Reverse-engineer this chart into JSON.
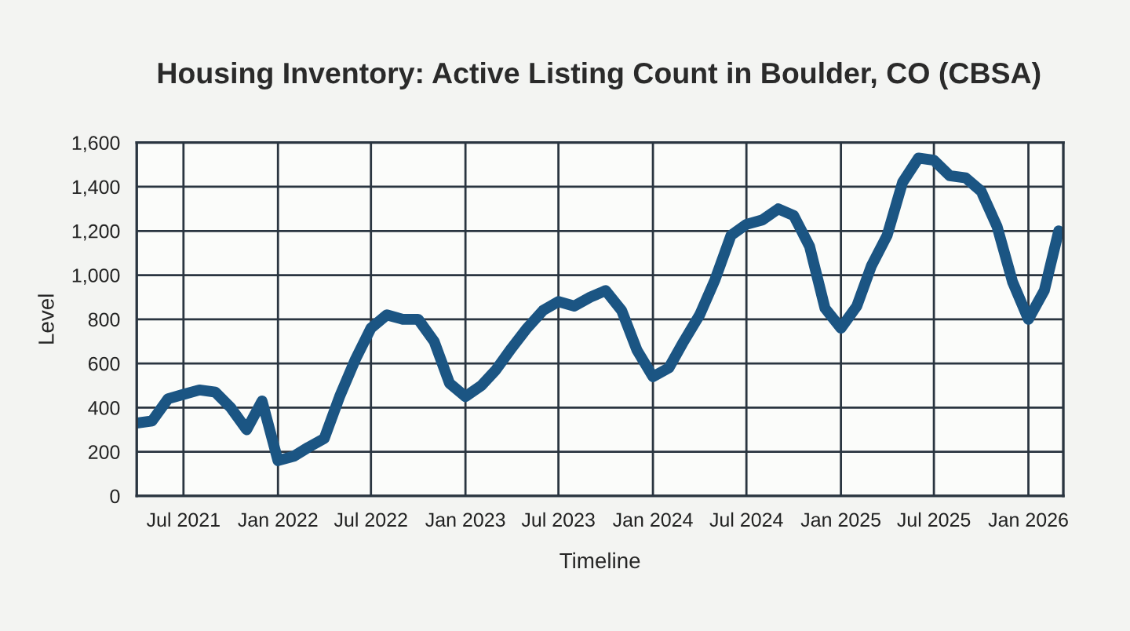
{
  "chart_data": {
    "type": "line",
    "title": "Housing Inventory: Active Listing Count in Boulder, CO (CBSA)",
    "xlabel": "Timeline",
    "ylabel": "Level",
    "x": [
      "2021-04",
      "2021-05",
      "2021-06",
      "2021-07",
      "2021-08",
      "2021-09",
      "2021-10",
      "2021-11",
      "2021-12",
      "2022-01",
      "2022-02",
      "2022-03",
      "2022-04",
      "2022-05",
      "2022-06",
      "2022-07",
      "2022-08",
      "2022-09",
      "2022-10",
      "2022-11",
      "2022-12",
      "2023-01",
      "2023-02",
      "2023-03",
      "2023-04",
      "2023-05",
      "2023-06",
      "2023-07",
      "2023-08",
      "2023-09",
      "2023-10",
      "2023-11",
      "2023-12",
      "2024-01",
      "2024-02",
      "2024-03",
      "2024-04",
      "2024-05",
      "2024-06",
      "2024-07",
      "2024-08",
      "2024-09",
      "2024-10",
      "2024-11",
      "2024-12",
      "2025-01",
      "2025-02",
      "2025-03",
      "2025-04",
      "2025-05",
      "2025-06",
      "2025-07",
      "2025-08",
      "2025-09",
      "2025-10",
      "2025-11",
      "2025-12",
      "2026-01",
      "2026-02",
      "2026-03"
    ],
    "series": [
      {
        "color": "#1b5583",
        "values": [
          330,
          340,
          440,
          460,
          480,
          470,
          400,
          300,
          430,
          160,
          180,
          220,
          260,
          450,
          620,
          760,
          820,
          800,
          800,
          700,
          510,
          450,
          500,
          570,
          670,
          760,
          840,
          880,
          860,
          900,
          930,
          840,
          660,
          540,
          580,
          700,
          820,
          980,
          1180,
          1230,
          1250,
          1300,
          1270,
          1130,
          850,
          760,
          860,
          1040,
          1180,
          1420,
          1530,
          1520,
          1450,
          1440,
          1380,
          1220,
          970,
          800,
          930,
          1200
        ]
      }
    ],
    "xlim": [
      "2021-04-01",
      "2026-03-10"
    ],
    "xticks": [
      {
        "value": "2021-07-01",
        "label": "Jul 2021"
      },
      {
        "value": "2022-01-01",
        "label": "Jan 2022"
      },
      {
        "value": "2022-07-01",
        "label": "Jul 2022"
      },
      {
        "value": "2023-01-01",
        "label": "Jan 2023"
      },
      {
        "value": "2023-07-01",
        "label": "Jul 2023"
      },
      {
        "value": "2024-01-01",
        "label": "Jan 2024"
      },
      {
        "value": "2024-07-01",
        "label": "Jul 2024"
      },
      {
        "value": "2025-01-01",
        "label": "Jan 2025"
      },
      {
        "value": "2025-07-01",
        "label": "Jul 2025"
      },
      {
        "value": "2026-01-01",
        "label": "Jan 2026"
      }
    ],
    "ylim": [
      0,
      1600
    ],
    "yticks": [
      0,
      {
        "value": 200,
        "label": "200"
      },
      {
        "value": 400,
        "label": "400"
      },
      {
        "value": 600,
        "label": "600"
      },
      {
        "value": 800,
        "label": "800"
      },
      {
        "value": 1000,
        "label": "1,000"
      },
      {
        "value": 1200,
        "label": "1,200"
      },
      {
        "value": 1400,
        "label": "1,400"
      },
      {
        "value": 1600,
        "label": "1,600"
      }
    ],
    "grid": true,
    "line_style": "solid",
    "marker": "none"
  }
}
